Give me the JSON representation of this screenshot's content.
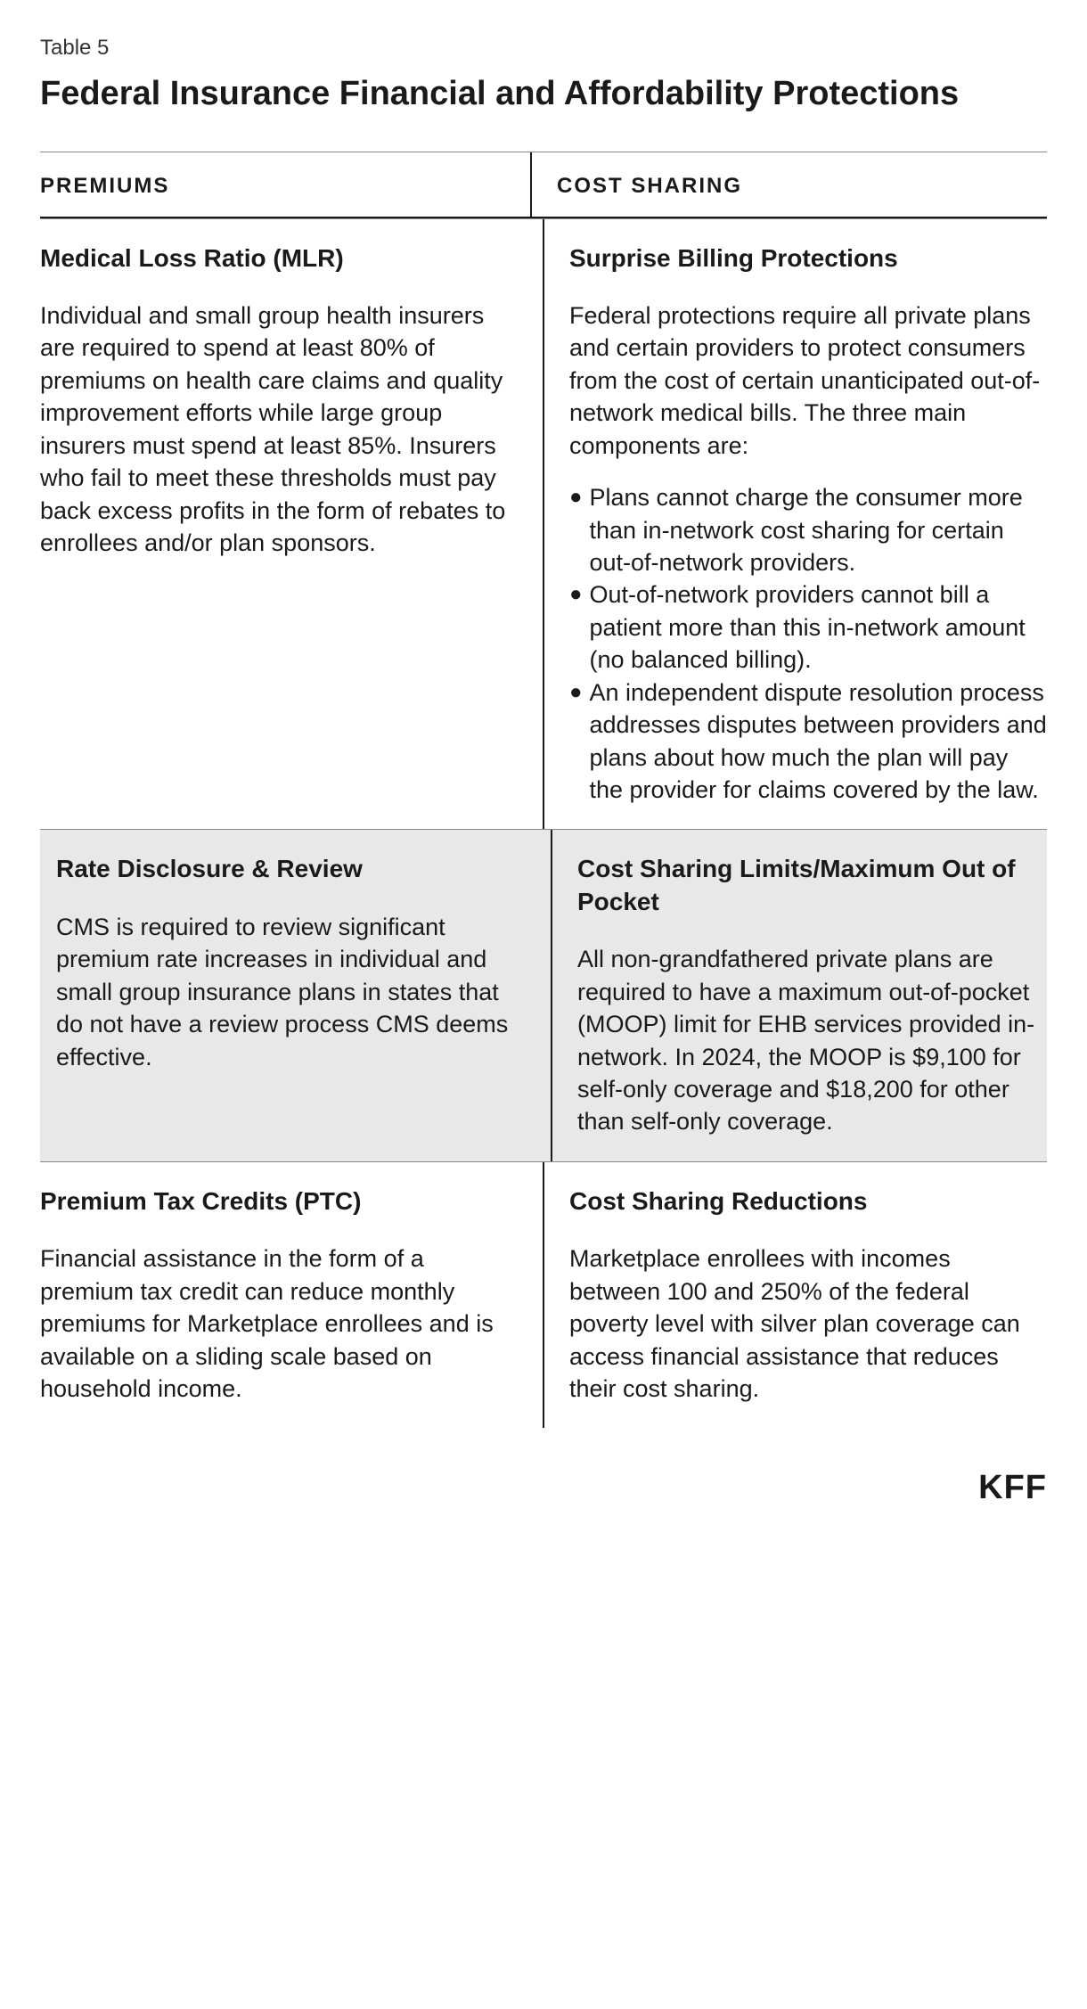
{
  "table_label": "Table 5",
  "main_title": "Federal Insurance Financial and Affordability Protections",
  "columns": {
    "left_header": "PREMIUMS",
    "right_header": "COST SHARING"
  },
  "rows": [
    {
      "left": {
        "title": "Medical Loss Ratio (MLR)",
        "body": "Individual and small group health insurers are required to spend at least 80% of premiums on health care claims and quality improvement efforts while large group insurers must spend at least 85%. Insurers who fail to meet these thresholds must pay back excess profits in the form of rebates to enrollees and/or plan sponsors."
      },
      "right": {
        "title": "Surprise Billing Protections",
        "intro": "Federal protections require all private plans and certain providers to protect consumers from the cost of certain unanticipated out-of-network medical bills. The three main components are:",
        "bullets": [
          "Plans cannot charge the consumer more than in-network cost sharing for certain out-of-network providers.",
          "Out-of-network providers cannot bill a patient more than this in-network amount (no balanced billing).",
          "An independent dispute resolution process addresses disputes between providers and plans about how much the plan will pay the provider for claims covered by the law."
        ]
      }
    },
    {
      "left": {
        "title": "Rate Disclosure & Review",
        "body": "CMS is required to review significant premium rate increases in individual and small group insurance plans  in states that do not have a review process CMS deems effective."
      },
      "right": {
        "title": "Cost Sharing Limits/Maximum Out of Pocket",
        "body": "All non-grandfathered private plans are required to have a maximum out-of-pocket (MOOP) limit for EHB services provided in-network. In 2024, the MOOP is $9,100 for self-only coverage and $18,200 for other than self-only coverage."
      }
    },
    {
      "left": {
        "title": "Premium Tax Credits (PTC)",
        "body": "Financial assistance in the form of a premium tax credit can reduce monthly premiums for Marketplace enrollees and is available on a sliding scale based on household income."
      },
      "right": {
        "title": "Cost Sharing Reductions",
        "body": "Marketplace enrollees with incomes between 100 and 250% of the federal poverty level with silver plan coverage can access financial assistance that reduces their cost sharing."
      }
    }
  ],
  "footer_logo": "KFF",
  "styling": {
    "background_color": "#ffffff",
    "text_color": "#1a1a1a",
    "alt_row_bg": "#e8e8e8",
    "divider_color": "#1a1a1a",
    "top_border_color": "#888888",
    "title_fontsize": 38,
    "body_fontsize": 27,
    "cell_title_fontsize": 28,
    "header_fontsize": 24,
    "header_letter_spacing": 2,
    "bullet_glyph": "●"
  }
}
